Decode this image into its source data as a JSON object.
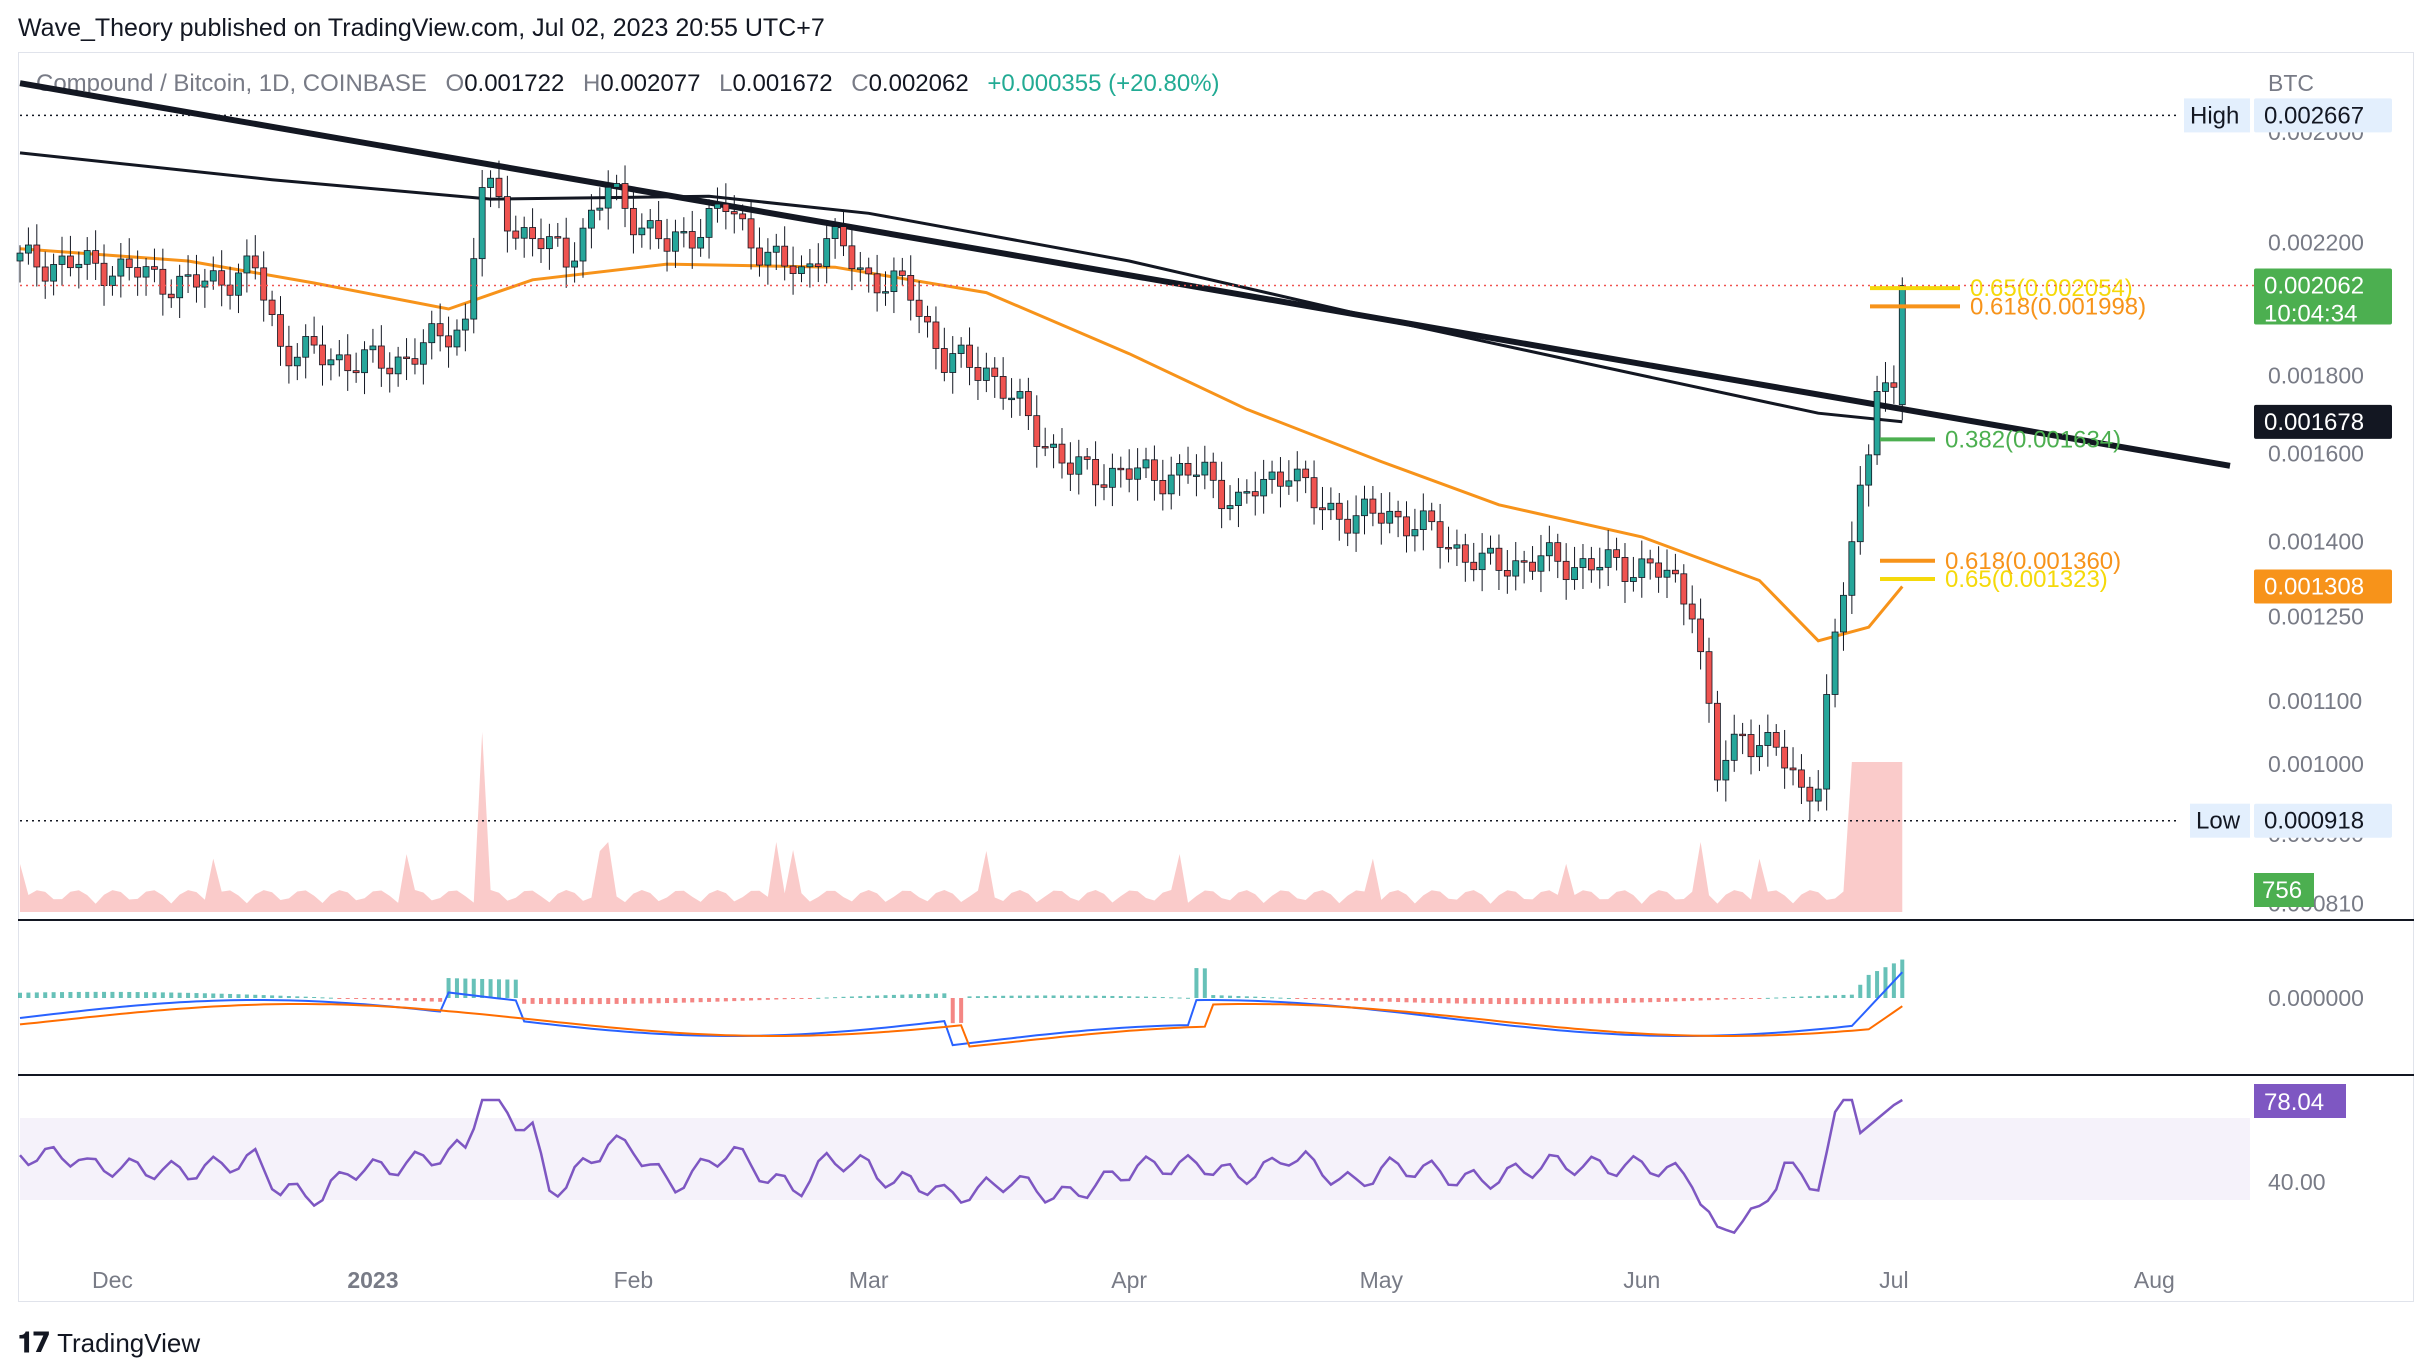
{
  "header": {
    "publisher": "Wave_Theory published on TradingView.com, Jul 02, 2023 20:55 UTC+7"
  },
  "legend": {
    "symbol": "Compound / Bitcoin, 1D, COINBASE",
    "o_label": "O",
    "o_value": "0.001722",
    "h_label": "H",
    "h_value": "0.002077",
    "l_label": "L",
    "l_value": "0.001672",
    "c_label": "C",
    "c_value": "0.002062",
    "change": "+0.000355 (+20.80%)"
  },
  "footer": {
    "brand": "TradingView"
  },
  "colors": {
    "up": "#26a69a",
    "down": "#ef5350",
    "ma_orange": "#f7931a",
    "ma_black": "#131722",
    "fib_yellow": "#f5d90a",
    "fib_orange": "#f7931a",
    "fib_green": "#4caf50",
    "macd_blue": "#2962ff",
    "signal_orange": "#ff6d00",
    "rsi_purple": "#7e57c2"
  },
  "chart_data": {
    "type": "candlestick",
    "symbol": "Compound / Bitcoin",
    "timeframe": "1D",
    "exchange": "COINBASE",
    "currency": "BTC",
    "x_labels": [
      "Dec",
      "2023",
      "Feb",
      "Mar",
      "Apr",
      "May",
      "Jun",
      "Jul",
      "Aug"
    ],
    "price_axis_labels": [
      "0.002600",
      "0.002200",
      "0.001800",
      "0.001600",
      "0.001400",
      "0.001250",
      "0.001100",
      "0.001000",
      "0.000900",
      "0.000810"
    ],
    "ylim": [
      0.00079,
      0.0029
    ],
    "close_path": [
      [
        "2022-11-20",
        0.00214
      ],
      [
        "2022-12-01",
        0.00212
      ],
      [
        "2022-12-10",
        0.00206
      ],
      [
        "2022-12-18",
        0.00211
      ],
      [
        "2022-12-21",
        0.00188
      ],
      [
        "2022-12-26",
        0.00185
      ],
      [
        "2023-01-03",
        0.00183
      ],
      [
        "2023-01-08",
        0.00189
      ],
      [
        "2023-01-12",
        0.00195
      ],
      [
        "2023-01-14",
        0.0024
      ],
      [
        "2023-01-18",
        0.00225
      ],
      [
        "2023-01-24",
        0.00215
      ],
      [
        "2023-01-29",
        0.00238
      ],
      [
        "2023-02-05",
        0.00218
      ],
      [
        "2023-02-12",
        0.00232
      ],
      [
        "2023-02-17",
        0.00215
      ],
      [
        "2023-02-21",
        0.0021
      ],
      [
        "2023-02-24",
        0.00222
      ],
      [
        "2023-03-01",
        0.00209
      ],
      [
        "2023-03-06",
        0.00204
      ],
      [
        "2023-03-10",
        0.00184
      ],
      [
        "2023-03-15",
        0.00182
      ],
      [
        "2023-03-20",
        0.00168
      ],
      [
        "2023-03-25",
        0.00156
      ],
      [
        "2023-04-01",
        0.00155
      ],
      [
        "2023-04-10",
        0.00155
      ],
      [
        "2023-04-14",
        0.00148
      ],
      [
        "2023-04-20",
        0.00157
      ],
      [
        "2023-04-23",
        0.00148
      ],
      [
        "2023-04-28",
        0.00145
      ],
      [
        "2023-05-02",
        0.00146
      ],
      [
        "2023-05-07",
        0.00142
      ],
      [
        "2023-05-13",
        0.00135
      ],
      [
        "2023-05-20",
        0.00136
      ],
      [
        "2023-05-27",
        0.00135
      ],
      [
        "2023-06-02",
        0.00135
      ],
      [
        "2023-06-07",
        0.00128
      ],
      [
        "2023-06-10",
        0.00098
      ],
      [
        "2023-06-13",
        0.00105
      ],
      [
        "2023-06-17",
        0.00102
      ],
      [
        "2023-06-20",
        0.00096
      ],
      [
        "2023-06-22",
        0.00098
      ],
      [
        "2023-06-24",
        0.0012
      ],
      [
        "2023-06-26",
        0.0014
      ],
      [
        "2023-06-28",
        0.00162
      ],
      [
        "2023-06-29",
        0.0018
      ],
      [
        "2023-07-01",
        0.001722
      ],
      [
        "2023-07-02",
        0.002062
      ]
    ],
    "ma_orange": [
      [
        "2022-11-20",
        0.00218
      ],
      [
        "2022-12-10",
        0.00214
      ],
      [
        "2022-12-25",
        0.00207
      ],
      [
        "2023-01-10",
        0.00199
      ],
      [
        "2023-01-20",
        0.00208
      ],
      [
        "2023-02-05",
        0.00213
      ],
      [
        "2023-02-25",
        0.00212
      ],
      [
        "2023-03-15",
        0.00204
      ],
      [
        "2023-04-01",
        0.00186
      ],
      [
        "2023-04-15",
        0.00171
      ],
      [
        "2023-05-01",
        0.00158
      ],
      [
        "2023-05-15",
        0.00148
      ],
      [
        "2023-06-01",
        0.00141
      ],
      [
        "2023-06-15",
        0.00132
      ],
      [
        "2023-06-22",
        0.001205
      ],
      [
        "2023-06-28",
        0.00123
      ],
      [
        "2023-07-02",
        0.001308
      ]
    ],
    "ma_black": [
      [
        "2022-11-20",
        0.00252
      ],
      [
        "2022-12-20",
        0.00242
      ],
      [
        "2023-01-15",
        0.00235
      ],
      [
        "2023-02-10",
        0.00236
      ],
      [
        "2023-03-01",
        0.0023
      ],
      [
        "2023-04-01",
        0.00214
      ],
      [
        "2023-05-01",
        0.00196
      ],
      [
        "2023-06-01",
        0.0018
      ],
      [
        "2023-06-22",
        0.0017
      ],
      [
        "2023-07-02",
        0.001678
      ]
    ],
    "trendline": [
      [
        "2022-11-20",
        0.0028
      ],
      [
        "2023-08-10",
        0.00157
      ]
    ],
    "annotations": {
      "high_label": "High",
      "high_value": "0.002667",
      "high": 0.002667,
      "low_label": "Low",
      "low_value": "0.000918",
      "low": 0.000918,
      "current_price": "0.002062",
      "countdown": "10:04:34",
      "ma_black_value": "0.001678",
      "ma_orange_value": "0.001308",
      "volume_value": "756",
      "fib_top_65": "0.65(0.002054)",
      "fib_top_618": "0.618(0.001998)",
      "fib_382": "0.382(0.001634)",
      "fib_bottom_618": "0.618(0.001360)",
      "fib_bottom_65": "0.65(0.001323)"
    },
    "macd": {
      "zero_label": "0.000000"
    },
    "rsi": {
      "value": "78.04",
      "level_label": "40.00"
    }
  }
}
